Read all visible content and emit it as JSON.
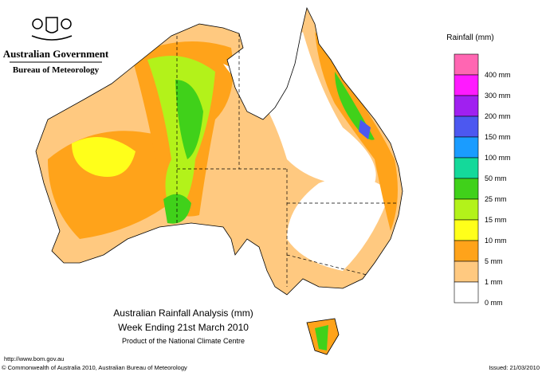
{
  "header": {
    "government": "Australian Government",
    "agency": "Bureau of Meteorology"
  },
  "legend": {
    "title": "Rainfall (mm)",
    "items": [
      {
        "label": "400 mm",
        "color": "#ff66b2"
      },
      {
        "label": "300 mm",
        "color": "#ff1aff"
      },
      {
        "label": "200 mm",
        "color": "#a020f0"
      },
      {
        "label": "150 mm",
        "color": "#4c58f0"
      },
      {
        "label": "100 mm",
        "color": "#1a9cff"
      },
      {
        "label": "50 mm",
        "color": "#14d99a"
      },
      {
        "label": "25 mm",
        "color": "#40d11a"
      },
      {
        "label": "15 mm",
        "color": "#b3f21a"
      },
      {
        "label": "10 mm",
        "color": "#ffff1a"
      },
      {
        "label": "5 mm",
        "color": "#ffa31a"
      },
      {
        "label": "1 mm",
        "color": "#ffc980"
      },
      {
        "label": "0 mm",
        "color": "#ffffff"
      }
    ]
  },
  "map_title": {
    "line1": "Australian Rainfall Analysis (mm)",
    "line2": "Week Ending 21st March 2010",
    "line3": "Product of the National Climate Centre"
  },
  "footer": {
    "url": "http://www.bom.gov.au",
    "copyright": "© Commonwealth of Australia 2010, Australian Bureau of Meteorology",
    "issued": "Issued: 21/03/2010"
  }
}
